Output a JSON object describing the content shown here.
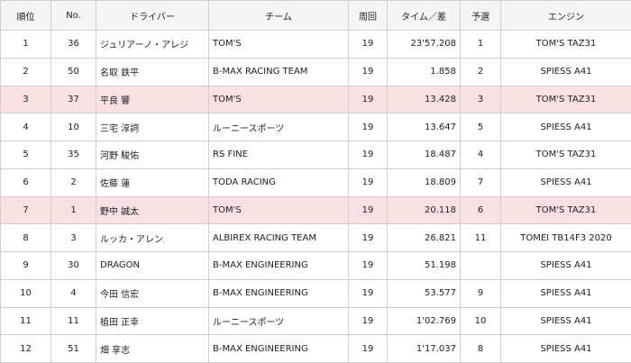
{
  "headers": {
    "pos": "順位",
    "no": "No.",
    "driver": "ドライバー",
    "team": "チーム",
    "laps": "周回",
    "time": "タイム／差",
    "qual": "予選",
    "engine": "エンジン"
  },
  "rows": [
    {
      "pos": "1",
      "no": "36",
      "driver": "ジュリアーノ・アレジ",
      "team": "TOM'S",
      "laps": "19",
      "time": "23'57.208",
      "qual": "1",
      "engine": "TOM'S TAZ31",
      "highlight": false
    },
    {
      "pos": "2",
      "no": "50",
      "driver": "名取 鉄平",
      "team": "B-MAX RACING TEAM",
      "laps": "19",
      "time": "1.858",
      "qual": "2",
      "engine": "SPIESS A41",
      "highlight": false
    },
    {
      "pos": "3",
      "no": "37",
      "driver": "平良 響",
      "team": "TOM'S",
      "laps": "19",
      "time": "13.428",
      "qual": "3",
      "engine": "TOM'S TAZ31",
      "highlight": true
    },
    {
      "pos": "4",
      "no": "10",
      "driver": "三宅 淳詞",
      "team": "ルーニースポーツ",
      "laps": "19",
      "time": "13.647",
      "qual": "5",
      "engine": "SPIESS A41",
      "highlight": false
    },
    {
      "pos": "5",
      "no": "35",
      "driver": "河野 駿佑",
      "team": "RS FINE",
      "laps": "19",
      "time": "18.487",
      "qual": "4",
      "engine": "TOM'S TAZ31",
      "highlight": false
    },
    {
      "pos": "6",
      "no": "2",
      "driver": "佐藤 蓮",
      "team": "TODA RACING",
      "laps": "19",
      "time": "18.809",
      "qual": "7",
      "engine": "SPIESS A41",
      "highlight": false
    },
    {
      "pos": "7",
      "no": "1",
      "driver": "野中 誠太",
      "team": "TOM'S",
      "laps": "19",
      "time": "20.118",
      "qual": "6",
      "engine": "TOM'S TAZ31",
      "highlight": true
    },
    {
      "pos": "8",
      "no": "3",
      "driver": "ルッカ・アレン",
      "team": "ALBIREX RACING TEAM",
      "laps": "19",
      "time": "26.821",
      "qual": "11",
      "engine": "TOMEI TB14F3 2020",
      "highlight": false
    },
    {
      "pos": "9",
      "no": "30",
      "driver": "DRAGON",
      "team": "B-MAX ENGINEERING",
      "laps": "19",
      "time": "51.198",
      "qual": "",
      "engine": "SPIESS A41",
      "highlight": false
    },
    {
      "pos": "10",
      "no": "4",
      "driver": "今田 信宏",
      "team": "B-MAX ENGINEERING",
      "laps": "19",
      "time": "53.577",
      "qual": "9",
      "engine": "SPIESS A41",
      "highlight": false
    },
    {
      "pos": "11",
      "no": "11",
      "driver": "植田 正幸",
      "team": "ルーニースポーツ",
      "laps": "19",
      "time": "1'02.769",
      "qual": "10",
      "engine": "SPIESS A41",
      "highlight": false
    },
    {
      "pos": "12",
      "no": "51",
      "driver": "畑 享志",
      "team": "B-MAX ENGINEERING",
      "laps": "19",
      "time": "1'17.037",
      "qual": "8",
      "engine": "SPIESS A41",
      "highlight": false
    }
  ],
  "colors": {
    "highlight_row": "#f8e0e3",
    "header_bg": "#f5f5f5",
    "border": "#cfcfcf"
  }
}
